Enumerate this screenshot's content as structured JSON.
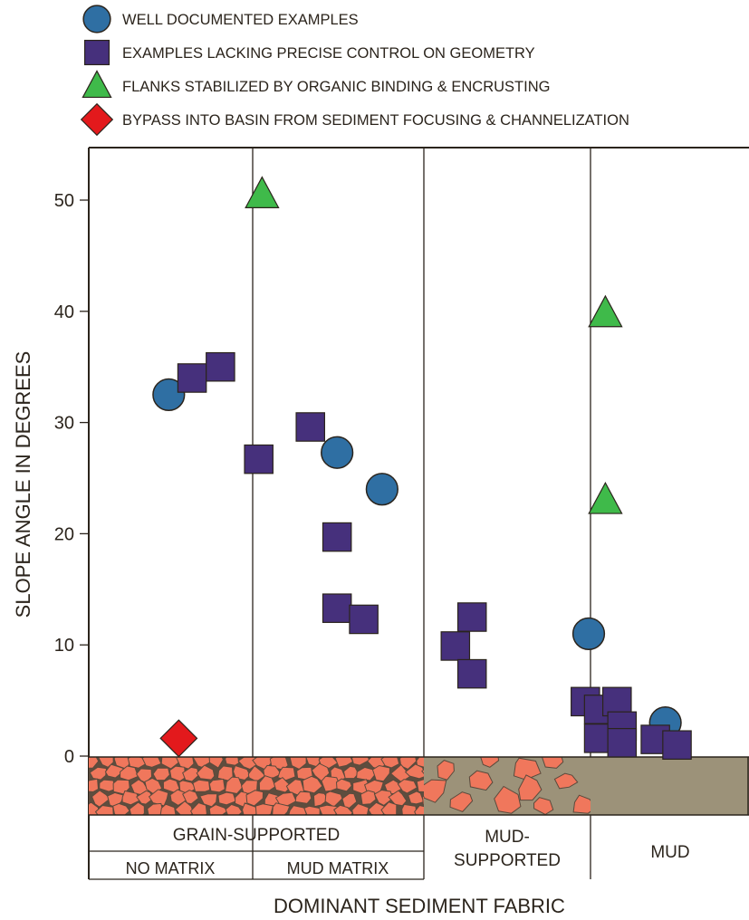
{
  "legend": [
    {
      "marker": "circle",
      "color": "#2f6fa3",
      "label": "WELL DOCUMENTED EXAMPLES"
    },
    {
      "marker": "square",
      "color": "#46307c",
      "label": "EXAMPLES LACKING PRECISE CONTROL ON GEOMETRY"
    },
    {
      "marker": "triangle",
      "color": "#3fba4a",
      "label": "FLANKS STABILIZED BY ORGANIC BINDING & ENCRUSTING"
    },
    {
      "marker": "diamond",
      "color": "#e3191c",
      "label": "BYPASS INTO BASIN FROM SEDIMENT FOCUSING & CHANNELIZATION"
    }
  ],
  "colors": {
    "frame": "#2b241c",
    "grain": "#f0775c",
    "mud": "#9c9279",
    "grain_outline": "#5a4a3c"
  },
  "fabric_labels": {
    "grain_supported": "GRAIN-SUPPORTED",
    "no_matrix": "NO MATRIX",
    "mud_matrix": "MUD MATRIX",
    "mud_supported_1": "MUD-",
    "mud_supported_2": "SUPPORTED",
    "mud": "MUD"
  },
  "chart_data": {
    "type": "scatter",
    "xlabel": "DOMINANT SEDIMENT FABRIC",
    "ylabel": "SLOPE ANGLE IN DEGREES",
    "ylim": [
      0,
      54
    ],
    "yticks": [
      0,
      10,
      20,
      30,
      40,
      50
    ],
    "xlim": [
      0,
      4
    ],
    "categories": [
      "NO MATRIX",
      "MUD MATRIX",
      "MUD-SUPPORTED",
      "MUD"
    ],
    "grid": false,
    "legend_position": "top",
    "series": [
      {
        "name": "WELL DOCUMENTED EXAMPLES",
        "marker": "circle",
        "points": [
          {
            "x": 0.48,
            "y": 32.5
          },
          {
            "x": 1.49,
            "y": 27.3
          },
          {
            "x": 1.76,
            "y": 24.0
          },
          {
            "x": 3.0,
            "y": 11.0
          },
          {
            "x": 3.46,
            "y": 3.0
          }
        ]
      },
      {
        "name": "EXAMPLES LACKING PRECISE CONTROL ON GEOMETRY",
        "marker": "square",
        "points": [
          {
            "x": 0.62,
            "y": 34.0
          },
          {
            "x": 0.79,
            "y": 35.0
          },
          {
            "x": 1.02,
            "y": 26.7
          },
          {
            "x": 1.33,
            "y": 29.6
          },
          {
            "x": 1.49,
            "y": 19.7
          },
          {
            "x": 1.49,
            "y": 13.3
          },
          {
            "x": 1.65,
            "y": 12.3
          },
          {
            "x": 2.2,
            "y": 9.9
          },
          {
            "x": 2.3,
            "y": 12.5
          },
          {
            "x": 2.3,
            "y": 7.4
          },
          {
            "x": 2.98,
            "y": 4.9
          },
          {
            "x": 3.06,
            "y": 4.2
          },
          {
            "x": 3.17,
            "y": 4.9
          },
          {
            "x": 3.06,
            "y": 1.6
          },
          {
            "x": 3.2,
            "y": 2.7
          },
          {
            "x": 3.2,
            "y": 1.2
          },
          {
            "x": 3.4,
            "y": 1.5
          },
          {
            "x": 3.53,
            "y": 1.0
          }
        ]
      },
      {
        "name": "FLANKS STABILIZED BY ORGANIC BINDING & ENCRUSTING",
        "marker": "triangle",
        "points": [
          {
            "x": 1.04,
            "y": 50.5
          },
          {
            "x": 3.1,
            "y": 39.8
          },
          {
            "x": 3.1,
            "y": 23.0
          }
        ]
      },
      {
        "name": "BYPASS INTO BASIN FROM SEDIMENT FOCUSING & CHANNELIZATION",
        "marker": "diamond",
        "points": [
          {
            "x": 0.54,
            "y": 1.6
          }
        ]
      }
    ]
  }
}
